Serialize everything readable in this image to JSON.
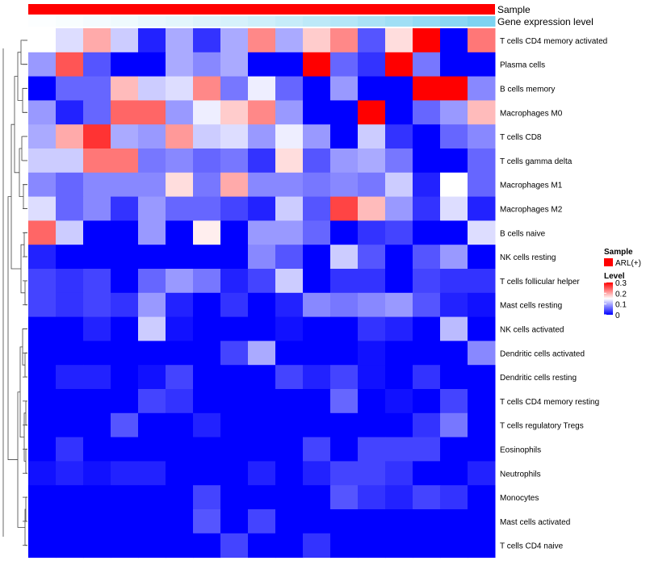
{
  "chart_data": {
    "type": "heatmap",
    "title": "",
    "rows": [
      "T cells CD4 memory activated",
      "Plasma cells",
      "B cells memory",
      "Macrophages M0",
      "T cells CD8",
      "T cells gamma delta",
      "Macrophages M1",
      "Macrophages M2",
      "B cells naive",
      "NK cells resting",
      "T cells follicular helper",
      "Mast cells resting",
      "NK cells activated",
      "Dendritic cells activated",
      "Dendritic cells resting",
      "T cells CD4 memory resting",
      "T cells regulatory  Tregs",
      "Eosinophils",
      "Neutrophils",
      "Monocytes",
      "Mast cells activated",
      "T cells CD4 naive"
    ],
    "values": [
      [
        0.15,
        0.13,
        0.2,
        0.12,
        0.02,
        0.1,
        0.03,
        0.1,
        0.22,
        0.1,
        0.18,
        0.22,
        0.05,
        0.17,
        0.3,
        0.0,
        0.23
      ],
      [
        0.09,
        0.25,
        0.05,
        0.0,
        0.0,
        0.1,
        0.08,
        0.1,
        0.0,
        0.0,
        0.3,
        0.06,
        0.03,
        0.3,
        0.07,
        0.0,
        0.0
      ],
      [
        0.0,
        0.06,
        0.06,
        0.19,
        0.12,
        0.13,
        0.22,
        0.07,
        0.14,
        0.06,
        0.0,
        0.09,
        0.0,
        0.0,
        0.3,
        0.3,
        0.08
      ],
      [
        0.09,
        0.02,
        0.06,
        0.24,
        0.24,
        0.09,
        0.14,
        0.18,
        0.22,
        0.09,
        0.0,
        0.0,
        0.3,
        0.0,
        0.06,
        0.09,
        0.19
      ],
      [
        0.1,
        0.2,
        0.27,
        0.1,
        0.09,
        0.21,
        0.12,
        0.13,
        0.09,
        0.14,
        0.09,
        0.0,
        0.12,
        0.03,
        0.0,
        0.06,
        0.08
      ],
      [
        0.12,
        0.12,
        0.23,
        0.23,
        0.07,
        0.08,
        0.06,
        0.07,
        0.03,
        0.17,
        0.05,
        0.09,
        0.1,
        0.07,
        0.0,
        0.0,
        0.06
      ],
      [
        0.08,
        0.06,
        0.08,
        0.08,
        0.08,
        0.17,
        0.07,
        0.2,
        0.08,
        0.08,
        0.07,
        0.08,
        0.07,
        0.12,
        0.02,
        0.15,
        0.06
      ],
      [
        0.13,
        0.06,
        0.08,
        0.03,
        0.09,
        0.06,
        0.06,
        0.04,
        0.02,
        0.12,
        0.05,
        0.26,
        0.19,
        0.09,
        0.03,
        0.13,
        0.02
      ],
      [
        0.24,
        0.12,
        0.0,
        0.0,
        0.09,
        0.0,
        0.16,
        0.0,
        0.09,
        0.09,
        0.06,
        0.0,
        0.03,
        0.04,
        0.0,
        0.0,
        0.13
      ],
      [
        0.02,
        0.0,
        0.0,
        0.0,
        0.0,
        0.0,
        0.0,
        0.0,
        0.08,
        0.05,
        0.0,
        0.12,
        0.05,
        0.0,
        0.05,
        0.09,
        0.0
      ],
      [
        0.04,
        0.03,
        0.04,
        0.0,
        0.06,
        0.09,
        0.07,
        0.02,
        0.04,
        0.12,
        0.0,
        0.03,
        0.03,
        0.0,
        0.04,
        0.03,
        0.03
      ],
      [
        0.04,
        0.03,
        0.04,
        0.03,
        0.09,
        0.02,
        0.0,
        0.03,
        0.0,
        0.02,
        0.08,
        0.07,
        0.08,
        0.09,
        0.05,
        0.02,
        0.01
      ],
      [
        0.0,
        0.0,
        0.02,
        0.0,
        0.12,
        0.01,
        0.0,
        0.0,
        0.0,
        0.01,
        0.0,
        0.0,
        0.03,
        0.02,
        0.0,
        0.11,
        0.0
      ],
      [
        0.0,
        0.0,
        0.0,
        0.0,
        0.0,
        0.0,
        0.0,
        0.04,
        0.1,
        0.0,
        0.0,
        0.0,
        0.01,
        0.0,
        0.0,
        0.0,
        0.08
      ],
      [
        0.0,
        0.02,
        0.02,
        0.0,
        0.01,
        0.04,
        0.0,
        0.0,
        0.0,
        0.04,
        0.02,
        0.04,
        0.01,
        0.0,
        0.03,
        0.0,
        0.0
      ],
      [
        0.0,
        0.0,
        0.0,
        0.0,
        0.04,
        0.03,
        0.0,
        0.0,
        0.0,
        0.0,
        0.0,
        0.06,
        0.0,
        0.01,
        0.0,
        0.04,
        0.0
      ],
      [
        0.0,
        0.0,
        0.0,
        0.05,
        0.0,
        0.0,
        0.02,
        0.0,
        0.0,
        0.0,
        0.0,
        0.0,
        0.0,
        0.0,
        0.03,
        0.07,
        0.0
      ],
      [
        0.0,
        0.03,
        0.0,
        0.0,
        0.0,
        0.0,
        0.0,
        0.0,
        0.0,
        0.0,
        0.04,
        0.0,
        0.04,
        0.04,
        0.04,
        0.0,
        0.0
      ],
      [
        0.01,
        0.02,
        0.01,
        0.02,
        0.02,
        0.0,
        0.0,
        0.0,
        0.02,
        0.0,
        0.02,
        0.04,
        0.04,
        0.03,
        0.0,
        0.0,
        0.02
      ],
      [
        0.0,
        0.0,
        0.0,
        0.0,
        0.0,
        0.0,
        0.04,
        0.0,
        0.0,
        0.0,
        0.0,
        0.05,
        0.03,
        0.02,
        0.04,
        0.03,
        0.0
      ],
      [
        0.0,
        0.0,
        0.0,
        0.0,
        0.0,
        0.0,
        0.05,
        0.0,
        0.04,
        0.0,
        0.0,
        0.0,
        0.0,
        0.0,
        0.0,
        0.0,
        0.0
      ],
      [
        0.0,
        0.0,
        0.0,
        0.0,
        0.0,
        0.0,
        0.0,
        0.04,
        0.0,
        0.0,
        0.03,
        0.0,
        0.0,
        0.0,
        0.0,
        0.0,
        0.0
      ]
    ],
    "gene_expression_level": [
      0.02,
      0.04,
      0.07,
      0.1,
      0.14,
      0.17,
      0.21,
      0.25,
      0.3,
      0.35,
      0.4,
      0.46,
      0.52,
      0.58,
      0.65,
      0.72,
      0.8
    ],
    "annotation_tracks": [
      {
        "label": "Sample",
        "color": "#ff0000"
      },
      {
        "label": "Gene expression level",
        "color_low": "#ffffff",
        "color_high": "#5bc8ee"
      }
    ],
    "legend": {
      "position": "right",
      "sample_title": "Sample",
      "sample_item": "ARL(+)",
      "sample_color": "#ff0000",
      "level_title": "Level",
      "level_ticks": [
        "0.3",
        "0.2",
        "0.1",
        "0"
      ],
      "level_tick_values": [
        0.3,
        0.2,
        0.1,
        0.0
      ]
    },
    "color_scale": {
      "low": "#0000ff",
      "mid": "#ffffff",
      "high": "#ff0000",
      "range": [
        0,
        0.3
      ]
    },
    "row_dendrogram": true
  }
}
